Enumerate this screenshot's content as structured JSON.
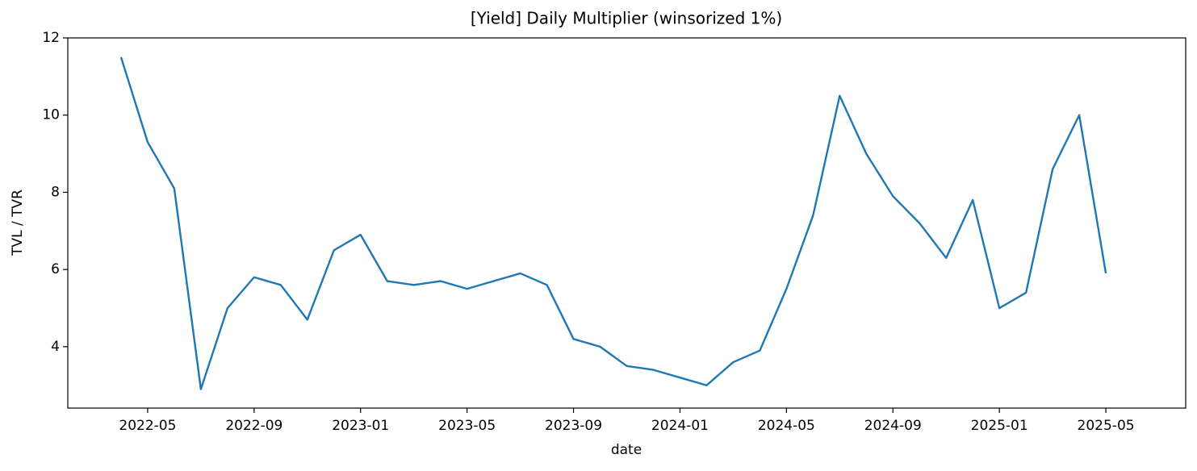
{
  "chart_data": {
    "type": "line",
    "title": "[Yield] Daily Multiplier (winsorized 1%)",
    "x_label": "date",
    "y_label": "TVL / TVR",
    "x": [
      "2022-04",
      "2022-05",
      "2022-06",
      "2022-07",
      "2022-08",
      "2022-09",
      "2022-10",
      "2022-11",
      "2022-12",
      "2023-01",
      "2023-02",
      "2023-03",
      "2023-04",
      "2023-05",
      "2023-06",
      "2023-07",
      "2023-08",
      "2023-09",
      "2023-10",
      "2023-11",
      "2023-12",
      "2024-01",
      "2024-02",
      "2024-03",
      "2024-04",
      "2024-05",
      "2024-06",
      "2024-07",
      "2024-08",
      "2024-09",
      "2024-10",
      "2024-11",
      "2024-12",
      "2025-01",
      "2025-02",
      "2025-03",
      "2025-04",
      "2025-05"
    ],
    "series": [
      {
        "name": "multiplier",
        "color": "#1f77b4",
        "values": [
          11.5,
          9.3,
          8.1,
          2.9,
          5.0,
          5.8,
          5.6,
          4.7,
          6.5,
          6.9,
          5.7,
          5.6,
          5.7,
          5.5,
          5.7,
          5.9,
          5.6,
          4.2,
          4.0,
          3.5,
          3.4,
          3.2,
          3.0,
          3.6,
          3.9,
          5.5,
          7.4,
          10.5,
          9.0,
          7.9,
          7.2,
          6.3,
          7.8,
          5.0,
          5.4,
          8.6,
          10.0,
          5.9
        ]
      }
    ],
    "xlim": [
      "2022-02",
      "2025-08"
    ],
    "xticks": [
      "2022-05",
      "2022-09",
      "2023-01",
      "2023-05",
      "2023-09",
      "2024-01",
      "2024-05",
      "2024-09",
      "2025-01",
      "2025-05"
    ],
    "ylim": [
      2.41,
      12
    ],
    "yticks": [
      4,
      6,
      8,
      10,
      12
    ]
  }
}
